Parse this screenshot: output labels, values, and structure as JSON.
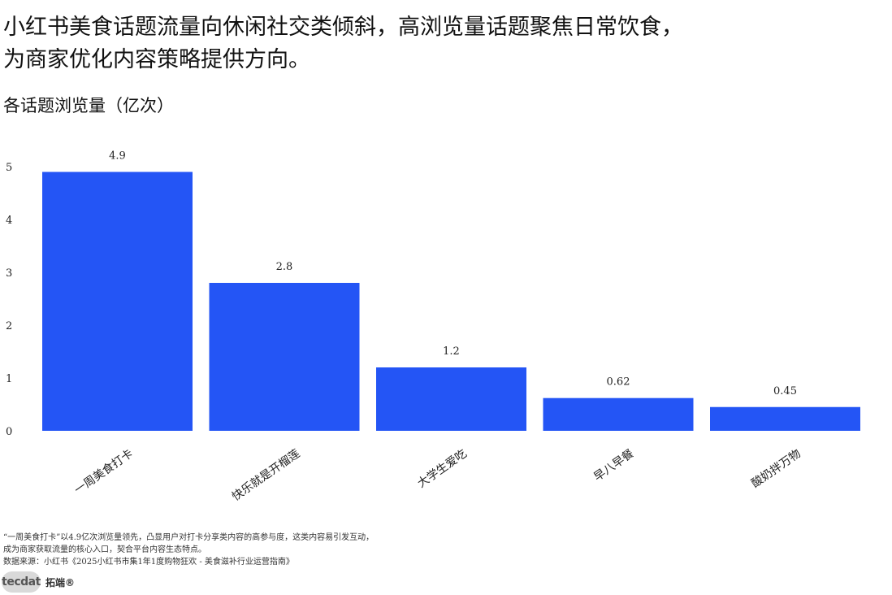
{
  "headline": {
    "line1": "小红书美食话题流量向休闲社交类倾斜，高浏览量话题聚焦日常饮食，",
    "line2": "为商家优化内容策略提供方向。"
  },
  "chart_data": {
    "type": "bar",
    "title": "各话题浏览量（亿次）",
    "categories": [
      "一周美食打卡",
      "快乐就是开榴莲",
      "大学生爱吃",
      "早八早餐",
      "酸奶拌万物"
    ],
    "values": [
      4.9,
      2.8,
      1.2,
      0.62,
      0.45
    ],
    "value_labels": [
      "4.9",
      "2.8",
      "1.2",
      "0.62",
      "0.45"
    ],
    "yticks": [
      0,
      1,
      2,
      3,
      4,
      5
    ],
    "ylim": [
      0,
      5.6
    ],
    "bar_color": "#2455f5",
    "grid": false,
    "legend": "none",
    "xlabel": "",
    "ylabel": ""
  },
  "footnote": {
    "line1": "“一周美食打卡”以4.9亿次浏览量领先，凸显用户对打卡分享类内容的高参与度，这类内容易引发互动，",
    "line2": "成为商家获取流量的核心入口，契合平台内容生态特点。",
    "source": "数据来源：小红书《2025小红书市集1年1度购物狂欢 - 美食滋补行业运营指南》"
  },
  "brand": {
    "mark": "tecdat",
    "name": "拓端®"
  }
}
